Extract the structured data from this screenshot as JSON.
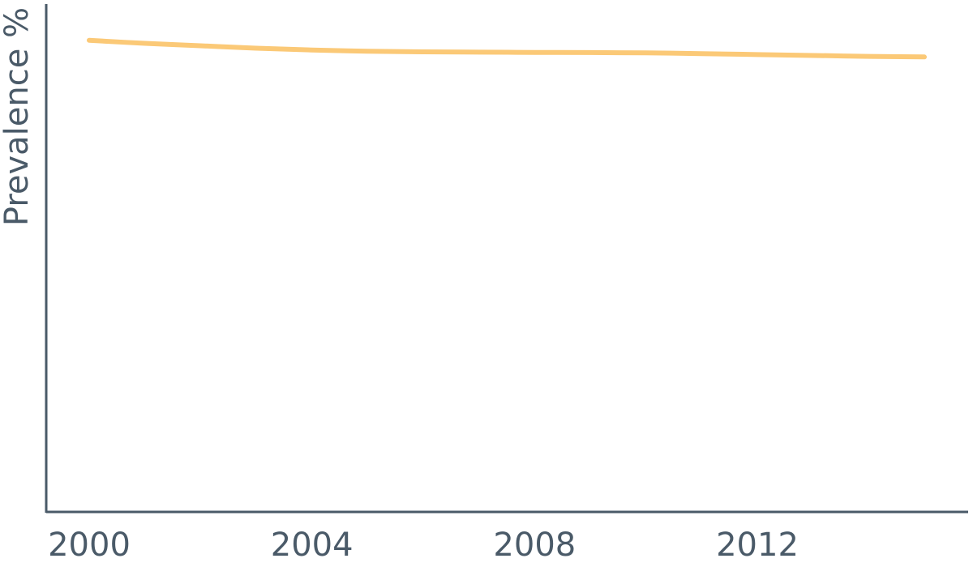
{
  "chart_data": {
    "type": "line",
    "title": "",
    "xlabel": "",
    "ylabel": "Prevalence %",
    "xlim": [
      2000,
      2015
    ],
    "ylim": [
      0,
      0.84
    ],
    "grid": false,
    "x_ticks": [
      "2000",
      "2004",
      "2008",
      "2012"
    ],
    "x": [
      2000,
      2001,
      2002,
      2003,
      2004,
      2005,
      2006,
      2007,
      2008,
      2009,
      2010,
      2011,
      2012,
      2013,
      2014,
      2015
    ],
    "series": [
      {
        "color": "#fbc977",
        "values": [
          0.78,
          0.775,
          0.771,
          0.767,
          0.764,
          0.762,
          0.761,
          0.7605,
          0.76,
          0.7598,
          0.7592,
          0.758,
          0.7565,
          0.755,
          0.7535,
          0.7525
        ]
      }
    ]
  }
}
